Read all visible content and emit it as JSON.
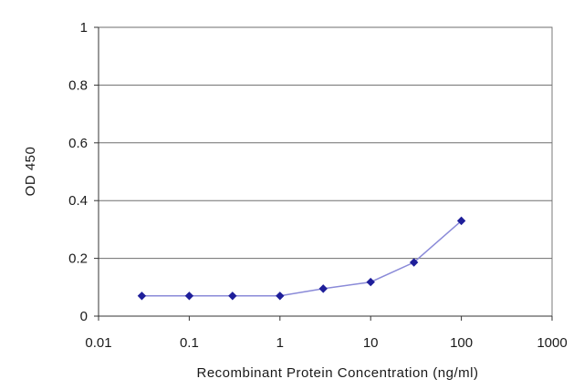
{
  "chart_data": {
    "type": "line",
    "title": "",
    "xlabel": "Recombinant Protein Concentration (ng/ml)",
    "ylabel": "OD 450",
    "xscale": "log",
    "xlim": [
      0.01,
      1000
    ],
    "ylim": [
      0,
      1
    ],
    "xticks": [
      0.01,
      0.1,
      1,
      10,
      100,
      1000
    ],
    "xtick_labels": [
      "0.01",
      "0.1",
      "1",
      "10",
      "100",
      "1000"
    ],
    "yticks": [
      0,
      0.2,
      0.4,
      0.6,
      0.8,
      1
    ],
    "ytick_labels": [
      "0",
      "0.2",
      "0.4",
      "0.6",
      "0.8",
      "1"
    ],
    "grid": "horizontal",
    "legend": "none",
    "marker": "diamond",
    "colors": {
      "line": "#8a8ad8",
      "marker": "#1f1f9a"
    },
    "series": [
      {
        "x": [
          0.03,
          0.1,
          0.3,
          1,
          3,
          10,
          30,
          100
        ],
        "y": [
          0.07,
          0.07,
          0.07,
          0.07,
          0.095,
          0.118,
          0.186,
          0.33
        ]
      }
    ]
  }
}
